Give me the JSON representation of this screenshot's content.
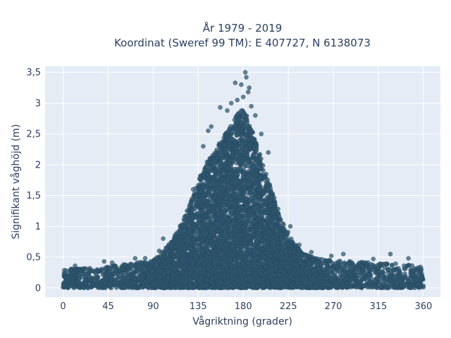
{
  "chart_data": {
    "type": "scatter",
    "title_line1": "År 1979 - 2019",
    "title_line2": "Koordinat (Sweref 99 TM): E 407727, N 6138073",
    "xlabel": "Vågriktning (grader)",
    "ylabel": "Signifikant våghöjd (m)",
    "xlim": [
      -18,
      377
    ],
    "ylim": [
      -0.15,
      3.6
    ],
    "x_ticks": [
      0,
      45,
      90,
      135,
      180,
      225,
      270,
      315,
      360
    ],
    "x_tick_labels": [
      "0",
      "45",
      "90",
      "135",
      "180",
      "225",
      "270",
      "315",
      "360"
    ],
    "y_ticks": [
      0,
      0.5,
      1,
      1.5,
      2,
      2.5,
      3,
      3.5
    ],
    "y_tick_labels": [
      "0",
      "0,5",
      "1",
      "1,5",
      "2",
      "2,5",
      "3",
      "3,5"
    ],
    "grid": true,
    "marker_color": "#2e566d",
    "background_color": "#e5ecf6",
    "envelope": {
      "x": [
        0,
        20,
        45,
        70,
        90,
        100,
        110,
        120,
        130,
        140,
        150,
        160,
        170,
        175,
        180,
        185,
        190,
        200,
        210,
        220,
        230,
        240,
        250,
        270,
        300,
        330,
        360
      ],
      "y_max": [
        0.3,
        0.32,
        0.35,
        0.4,
        0.45,
        0.6,
        0.8,
        1.1,
        1.5,
        1.95,
        2.2,
        2.45,
        2.7,
        2.85,
        2.9,
        2.75,
        2.5,
        2.0,
        1.5,
        1.05,
        0.75,
        0.55,
        0.5,
        0.45,
        0.42,
        0.4,
        0.35
      ]
    },
    "notable_points": [
      {
        "x": 182,
        "y": 3.5
      },
      {
        "x": 183,
        "y": 3.42
      },
      {
        "x": 172,
        "y": 3.33
      },
      {
        "x": 178,
        "y": 3.3
      },
      {
        "x": 186,
        "y": 3.25
      },
      {
        "x": 185,
        "y": 3.18
      },
      {
        "x": 180,
        "y": 3.1
      },
      {
        "x": 174,
        "y": 3.05
      },
      {
        "x": 168,
        "y": 3.0
      },
      {
        "x": 188,
        "y": 2.95
      },
      {
        "x": 157,
        "y": 2.93
      },
      {
        "x": 164,
        "y": 2.88
      },
      {
        "x": 192,
        "y": 2.8
      },
      {
        "x": 148,
        "y": 2.62
      },
      {
        "x": 145,
        "y": 2.55
      },
      {
        "x": 198,
        "y": 2.5
      },
      {
        "x": 140,
        "y": 2.3
      },
      {
        "x": 205,
        "y": 2.2
      },
      {
        "x": 130,
        "y": 1.6
      },
      {
        "x": 227,
        "y": 1.0
      },
      {
        "x": 236,
        "y": 0.7
      },
      {
        "x": 248,
        "y": 0.58
      },
      {
        "x": 96,
        "y": 0.6
      },
      {
        "x": 100,
        "y": 0.8
      },
      {
        "x": 82,
        "y": 0.48
      },
      {
        "x": 72,
        "y": 0.48
      },
      {
        "x": 41,
        "y": 0.43
      },
      {
        "x": 49,
        "y": 0.41
      },
      {
        "x": 12,
        "y": 0.36
      },
      {
        "x": 268,
        "y": 0.52
      },
      {
        "x": 280,
        "y": 0.55
      },
      {
        "x": 310,
        "y": 0.47
      },
      {
        "x": 327,
        "y": 0.55
      },
      {
        "x": 345,
        "y": 0.48
      },
      {
        "x": 357,
        "y": 0.34
      },
      {
        "x": 60,
        "y": 0.02
      },
      {
        "x": 300,
        "y": 0.04
      }
    ]
  }
}
